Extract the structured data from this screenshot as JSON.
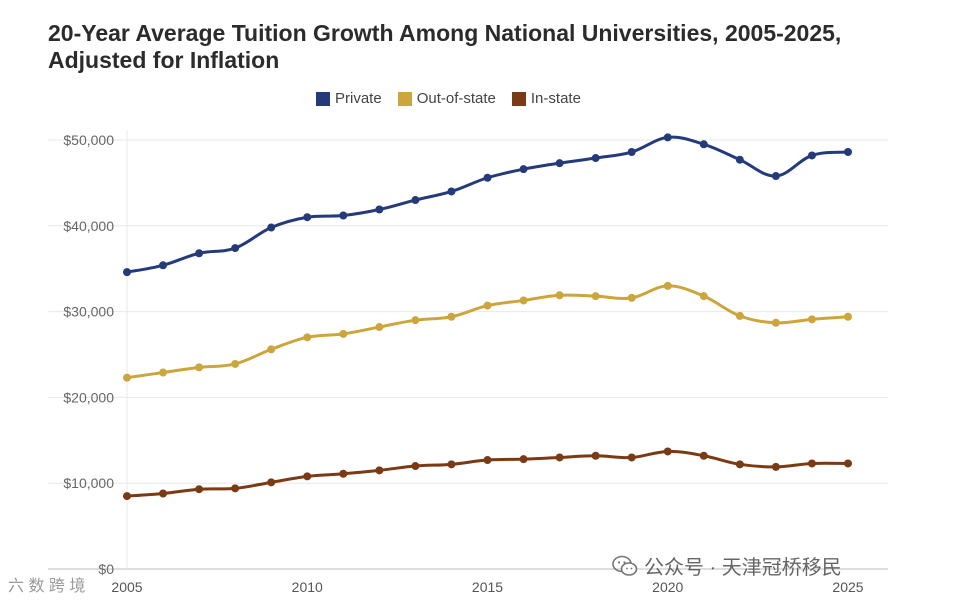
{
  "colors": {
    "private": "#243a7a",
    "outofstate": "#cca53c",
    "instate": "#7a3a14",
    "grid": "#e8e8e8",
    "axis": "#bdbdbd"
  },
  "chart_data": {
    "type": "line",
    "title": "20-Year Average Tuition Growth Among National Universities, 2005-2025, Adjusted for Inflation",
    "title_line1": "20-Year Average Tuition Growth Among National Universities, 2005-2025,",
    "title_line2": "Adjusted for Inflation",
    "xlabel": "",
    "ylabel": "",
    "x": [
      2005,
      2006,
      2007,
      2008,
      2009,
      2010,
      2011,
      2012,
      2013,
      2014,
      2015,
      2016,
      2017,
      2018,
      2019,
      2020,
      2021,
      2022,
      2023,
      2024,
      2025
    ],
    "xlim": [
      2005,
      2025
    ],
    "ylim": [
      0,
      50000
    ],
    "x_ticks": [
      "2005",
      "2010",
      "2015",
      "2020",
      "2025"
    ],
    "y_ticks": [
      "$0",
      "$10,000",
      "$20,000",
      "$30,000",
      "$40,000",
      "$50,000"
    ],
    "legend_position": "top-center",
    "series": [
      {
        "name": "Private",
        "key": "private",
        "values": [
          34600,
          35400,
          36800,
          37400,
          39800,
          41000,
          41200,
          41900,
          43000,
          44000,
          45600,
          46600,
          47300,
          47900,
          48600,
          50300,
          49500,
          47700,
          45800,
          48200,
          48600
        ]
      },
      {
        "name": "Out-of-state",
        "key": "outofstate",
        "values": [
          22300,
          22900,
          23500,
          23900,
          25600,
          27000,
          27400,
          28200,
          29000,
          29400,
          30700,
          31300,
          31900,
          31800,
          31600,
          33000,
          31800,
          29500,
          28700,
          29100,
          29400
        ]
      },
      {
        "name": "In-state",
        "key": "instate",
        "values": [
          8500,
          8800,
          9300,
          9400,
          10100,
          10800,
          11100,
          11500,
          12000,
          12200,
          12700,
          12800,
          13000,
          13200,
          13000,
          13700,
          13200,
          12200,
          11900,
          12300,
          12300
        ]
      }
    ]
  },
  "watermarks": {
    "left": "六 数 跨 境",
    "right": "公众号 · 天津冠桥移民"
  }
}
